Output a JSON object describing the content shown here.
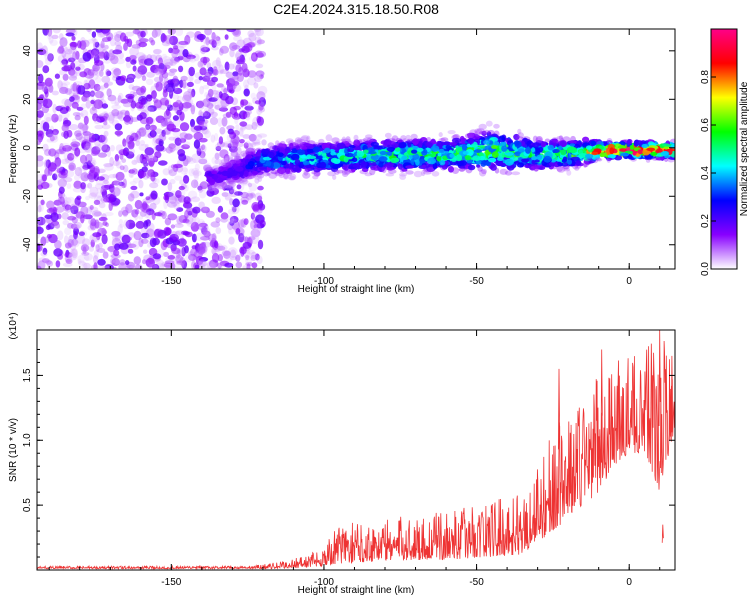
{
  "title": "C2E4.2024.315.18.50.R08",
  "colors": {
    "snr_line": "#ee3333",
    "axis": "#000000"
  },
  "chart_data": [
    {
      "type": "heatmap",
      "title": "C2E4.2024.315.18.50.R08",
      "xlabel": "Height of straight line (km)",
      "ylabel": "Frequency (Hz)",
      "xlim": [
        -194,
        15
      ],
      "ylim": [
        -50,
        49
      ],
      "x_ticks": [
        -150,
        -100,
        -50,
        0
      ],
      "x_tick_labels": [
        "-150",
        "-100",
        "-50",
        "0"
      ],
      "y_ticks": [
        -40,
        -20,
        0,
        20,
        40
      ],
      "y_tick_labels": [
        "-40",
        "-20",
        "0",
        "20",
        "40"
      ],
      "colorbar": {
        "label": "Normalized spectral amplitude",
        "range": [
          0,
          1
        ],
        "ticks": [
          0.0,
          0.2,
          0.4,
          0.6,
          0.8
        ],
        "tick_labels": [
          "0.0",
          "0.2",
          "0.4",
          "0.6",
          "0.8"
        ],
        "colormap": [
          "#ffffff",
          "#8800ff",
          "#0000ff",
          "#00ffff",
          "#00ff00",
          "#ffff00",
          "#ff0000",
          "#ff0088"
        ]
      },
      "noise_region": {
        "x_range": [
          -194,
          -120
        ],
        "y_range": [
          -50,
          49
        ],
        "amplitude_range": [
          0.0,
          0.15
        ]
      },
      "signal_band": [
        {
          "x": -135,
          "y": -12,
          "width": 4,
          "amplitude": 0.15
        },
        {
          "x": -120,
          "y": -5,
          "width": 6,
          "amplitude": 0.3
        },
        {
          "x": -100,
          "y": -4,
          "width": 6,
          "amplitude": 0.4
        },
        {
          "x": -80,
          "y": -3,
          "width": 6,
          "amplitude": 0.45
        },
        {
          "x": -60,
          "y": -3,
          "width": 6,
          "amplitude": 0.45
        },
        {
          "x": -45,
          "y": -1,
          "width": 8,
          "amplitude": 0.5
        },
        {
          "x": -30,
          "y": -3,
          "width": 6,
          "amplitude": 0.45
        },
        {
          "x": -15,
          "y": -2,
          "width": 5,
          "amplitude": 0.5
        },
        {
          "x": -10,
          "y": -1,
          "width": 3,
          "amplitude": 0.85
        },
        {
          "x": 0,
          "y": -1,
          "width": 3,
          "amplitude": 0.9
        },
        {
          "x": 15,
          "y": -1,
          "width": 3,
          "amplitude": 0.85
        }
      ]
    },
    {
      "type": "line",
      "xlabel": "Height of straight line (km)",
      "ylabel": "SNR (10 * v/v)",
      "y_scale_label": "(x10⁴)",
      "xlim": [
        -194,
        15
      ],
      "ylim": [
        0,
        1.85
      ],
      "x_ticks": [
        -150,
        -100,
        -50,
        0
      ],
      "x_tick_labels": [
        "-150",
        "-100",
        "-50",
        "0"
      ],
      "y_ticks": [
        0.5,
        1.0,
        1.5
      ],
      "y_tick_labels": [
        "0.5",
        "1.0",
        "1.5"
      ],
      "envelope": [
        {
          "x": -194,
          "base": 0.01,
          "peak": 0.03
        },
        {
          "x": -125,
          "base": 0.01,
          "peak": 0.03
        },
        {
          "x": -115,
          "base": 0.01,
          "peak": 0.06
        },
        {
          "x": -105,
          "base": 0.02,
          "peak": 0.12
        },
        {
          "x": -100,
          "base": 0.03,
          "peak": 0.2
        },
        {
          "x": -95,
          "base": 0.05,
          "peak": 0.35
        },
        {
          "x": -80,
          "base": 0.07,
          "peak": 0.4
        },
        {
          "x": -60,
          "base": 0.08,
          "peak": 0.45
        },
        {
          "x": -45,
          "base": 0.1,
          "peak": 0.55
        },
        {
          "x": -35,
          "base": 0.12,
          "peak": 0.6
        },
        {
          "x": -25,
          "base": 0.3,
          "peak": 1.1
        },
        {
          "x": -20,
          "base": 0.4,
          "peak": 1.2
        },
        {
          "x": -15,
          "base": 0.5,
          "peak": 1.4
        },
        {
          "x": -10,
          "base": 0.6,
          "peak": 1.5
        },
        {
          "x": -5,
          "base": 0.8,
          "peak": 1.6
        },
        {
          "x": 0,
          "base": 0.9,
          "peak": 1.65
        },
        {
          "x": 5,
          "base": 0.9,
          "peak": 1.7
        },
        {
          "x": 10,
          "base": 0.6,
          "peak": 1.85
        },
        {
          "x": 15,
          "base": 1.1,
          "peak": 1.6
        }
      ],
      "peaks": [
        {
          "x": -23,
          "y": 1.55
        },
        {
          "x": -9,
          "y": 1.7
        },
        {
          "x": 10,
          "y": 1.85
        },
        {
          "x": 11,
          "y": 0.35
        },
        {
          "x": 14,
          "y": 1.65
        }
      ]
    }
  ]
}
